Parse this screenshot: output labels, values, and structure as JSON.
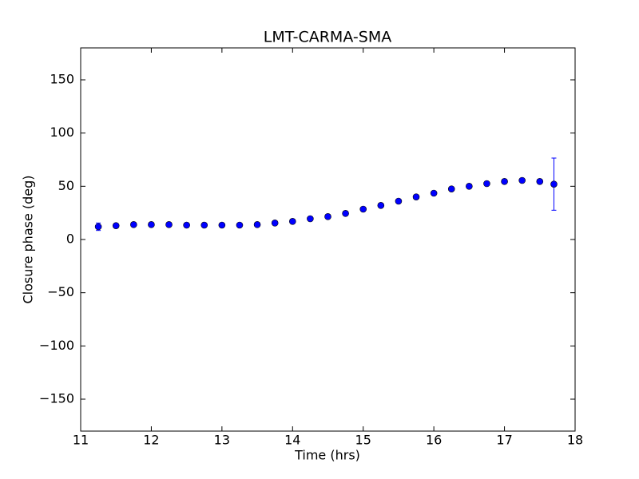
{
  "chart_data": {
    "type": "errorbar",
    "title": "LMT-CARMA-SMA",
    "x_label": "Time (hrs)",
    "y_label": "Closure phase (deg)",
    "xlim": [
      11,
      18
    ],
    "xticks": [
      11,
      12,
      13,
      14,
      15,
      16,
      17,
      18
    ],
    "ylim": [
      -180,
      180
    ],
    "yticks": [
      {
        "value": -150,
        "label": "−150"
      },
      {
        "value": -100,
        "label": "−100"
      },
      {
        "value": -50,
        "label": "−50"
      },
      0,
      50,
      100,
      150
    ],
    "color": "#0000ff",
    "x": [
      11.25,
      11.5,
      11.75,
      12.0,
      12.25,
      12.5,
      12.75,
      13.0,
      13.25,
      13.5,
      13.75,
      14.0,
      14.25,
      14.5,
      14.75,
      15.0,
      15.25,
      15.5,
      15.75,
      16.0,
      16.25,
      16.5,
      16.75,
      17.0,
      17.25,
      17.5,
      17.7
    ],
    "values": [
      12,
      13,
      14,
      14,
      14,
      13.5,
      13.5,
      13.5,
      13.5,
      14,
      15.5,
      17,
      19.5,
      21.5,
      24.5,
      28.5,
      32,
      36,
      40,
      43.5,
      47.5,
      50,
      52.5,
      54.5,
      55.5,
      54.5,
      52
    ],
    "errors": [
      3.5,
      1.5,
      1.5,
      1.5,
      1.5,
      1.5,
      1.5,
      1.5,
      1.5,
      1.5,
      1.5,
      1.5,
      1.5,
      1.5,
      1.5,
      1.5,
      1.5,
      1.5,
      1.5,
      1.5,
      1.5,
      1.5,
      1.5,
      1.5,
      1.5,
      2,
      24.5
    ]
  }
}
